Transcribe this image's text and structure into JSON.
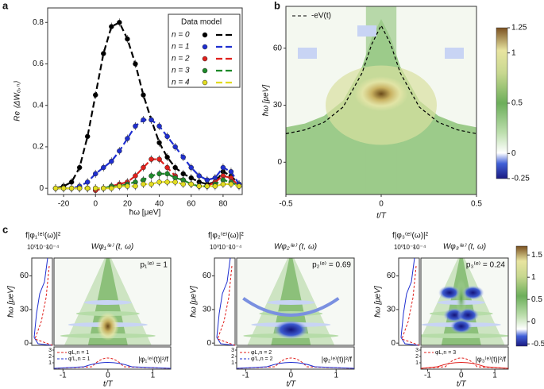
{
  "panel_labels": [
    "a",
    "b",
    "c"
  ],
  "chart_data": [
    {
      "type": "line",
      "y_label": "Re ⟨ΔW₀,ₙ⟩",
      "x_label": "ħω [μeV]",
      "legend_title": "Data model",
      "x": [
        -25,
        -20,
        -15,
        -10,
        -5,
        0,
        5,
        10,
        15,
        20,
        25,
        30,
        35,
        40,
        45,
        50,
        55,
        60,
        65,
        70,
        75,
        80,
        85,
        90
      ],
      "series": [
        {
          "name": "n = 0",
          "color": "#000000",
          "values": [
            0,
            0.01,
            0.03,
            0.1,
            0.25,
            0.45,
            0.65,
            0.78,
            0.8,
            0.72,
            0.6,
            0.45,
            0.33,
            0.22,
            0.15,
            0.1,
            0.07,
            0.05,
            0.03,
            0.02,
            0.03,
            0.08,
            0.06,
            0.02
          ]
        },
        {
          "name": "n = 1",
          "color": "#1f2fd0",
          "values": [
            0,
            0,
            0,
            0.01,
            0.03,
            0.07,
            0.1,
            0.13,
            0.18,
            0.24,
            0.3,
            0.33,
            0.33,
            0.3,
            0.25,
            0.2,
            0.15,
            0.1,
            0.06,
            0.04,
            0.05,
            0.1,
            0.08,
            0.02
          ]
        },
        {
          "name": "n = 2",
          "color": "#e0201c",
          "values": [
            0,
            0,
            0,
            0,
            0,
            -0.01,
            0,
            0.01,
            0.02,
            0.03,
            0.06,
            0.1,
            0.14,
            0.14,
            0.1,
            0.06,
            0.04,
            0.02,
            0.01,
            0.01,
            0.03,
            0.06,
            0.05,
            0.01
          ]
        },
        {
          "name": "n = 3",
          "color": "#1e8a2a",
          "values": [
            0,
            0,
            0,
            0,
            0,
            0,
            0,
            0.01,
            0.01,
            0.02,
            0.03,
            0.04,
            0.06,
            0.07,
            0.07,
            0.05,
            0.04,
            0.02,
            0.01,
            0.01,
            0.02,
            0.04,
            0.03,
            0.01
          ]
        },
        {
          "name": "n = 4",
          "color": "#e2dc20",
          "values": [
            0,
            0,
            0,
            0,
            0,
            0,
            0,
            0,
            0.01,
            0.01,
            0.01,
            0.02,
            0.02,
            0.03,
            0.03,
            0.03,
            0.02,
            0.02,
            0.01,
            0.01,
            0.01,
            0.02,
            0.02,
            0.01
          ]
        }
      ],
      "xlim": [
        -30,
        92
      ],
      "ylim": [
        -0.03,
        0.87
      ],
      "xticks": [
        -20,
        0,
        20,
        40,
        60,
        80
      ],
      "yticks": [
        0,
        0.2,
        0.4,
        0.6,
        0.8
      ]
    },
    {
      "type": "heatmap",
      "x_label": "t/T",
      "y_label": "ħω [μeV]",
      "xlim": [
        -0.5,
        0.5
      ],
      "ylim": [
        -17,
        82
      ],
      "xticks": [
        -0.5,
        0,
        0.5
      ],
      "yticks": [
        0,
        30,
        60
      ],
      "clim": [
        -0.25,
        1.25
      ],
      "cticks": [
        -0.25,
        0,
        0.5,
        1,
        1.25
      ],
      "series": [
        {
          "name": "-eV(t)",
          "color": "#000000",
          "x": [
            -0.5,
            -0.4,
            -0.3,
            -0.2,
            -0.1,
            -0.05,
            0,
            0.05,
            0.1,
            0.2,
            0.3,
            0.4,
            0.5
          ],
          "values": [
            15,
            17,
            21,
            29,
            47,
            62,
            72,
            62,
            47,
            29,
            21,
            17,
            15
          ]
        }
      ]
    },
    {
      "type": "wigner",
      "title": "Wφ₁⁽ᵉ⁾ (t, ω)",
      "annotation": "p₁⁽ᵉ⁾ = 1",
      "spectrum_label": "f|φ₁⁽ᵉ⁾(ω)|²",
      "spectrum_lim": [
        1,
        0.0001
      ],
      "spectrum_ticks": [
        {
          "value": 1,
          "label": "10⁰"
        },
        {
          "value": 0.01,
          "label": "10⁻²"
        },
        {
          "value": 0.0001,
          "label": "10⁻⁴"
        }
      ],
      "y_label": "ħω [μeV]",
      "ylim": [
        -2,
        76
      ],
      "yticks": [
        0,
        30,
        60
      ],
      "x_label": "t/T",
      "xlim": [
        -1.2,
        1.4
      ],
      "xticks": [
        -1,
        0,
        1
      ],
      "strip_ylim": [
        0,
        3.5
      ],
      "strip_yticks": [
        1,
        2,
        3
      ],
      "strip_label": "|φ₁⁽ᵉ⁾(t)|²/f",
      "series": [
        {
          "name": "φL,n = 1",
          "color": "#e0201c"
        },
        {
          "name": "φ'L,n = 1",
          "color": "#1f2fd0"
        }
      ]
    },
    {
      "type": "wigner",
      "title": "Wφ₂⁽ᵉ⁾ (t, ω)",
      "annotation": "p₂⁽ᵉ⁾ = 0.69",
      "spectrum_label": "f|φ₂⁽ᵉ⁾(ω)|²",
      "spectrum_lim": [
        1,
        0.0001
      ],
      "spectrum_ticks": [
        {
          "value": 1,
          "label": "10⁰"
        },
        {
          "value": 0.01,
          "label": "10⁻²"
        },
        {
          "value": 0.0001,
          "label": "10⁻⁴"
        }
      ],
      "y_label": "ħω [μeV]",
      "ylim": [
        -2,
        76
      ],
      "yticks": [
        0,
        30,
        60
      ],
      "x_label": "t/T",
      "xlim": [
        -1.2,
        1.4
      ],
      "xticks": [
        -1,
        0,
        1
      ],
      "strip_ylim": [
        0,
        3.5
      ],
      "strip_yticks": [
        1,
        2,
        3
      ],
      "strip_label": "|φ₂⁽ᵉ⁾(t)|²/f",
      "series": [
        {
          "name": "φL,n = 2",
          "color": "#e0201c"
        },
        {
          "name": "φ'L,n = 2",
          "color": "#1f2fd0"
        }
      ]
    },
    {
      "type": "wigner",
      "title": "Wφ₃⁽ᵉ⁾ (t, ω)",
      "annotation": "p₃⁽ᵉ⁾ = 0.24",
      "spectrum_label": "f|φ₃⁽ᵉ⁾(ω)|²",
      "spectrum_lim": [
        1,
        0.0001
      ],
      "spectrum_ticks": [
        {
          "value": 1,
          "label": "10⁰"
        },
        {
          "value": 0.01,
          "label": "10⁻²"
        },
        {
          "value": 0.0001,
          "label": "10⁻⁴"
        }
      ],
      "y_label": "ħω [μeV]",
      "ylim": [
        -2,
        76
      ],
      "yticks": [
        0,
        30,
        60
      ],
      "x_label": "t/T",
      "xlim": [
        -1.2,
        1.4
      ],
      "xticks": [
        -1,
        0,
        1
      ],
      "strip_ylim": [
        0,
        3.5
      ],
      "strip_yticks": [
        1,
        2,
        3
      ],
      "strip_label": "|φ₃⁽ᵉ⁾(t)|²/f",
      "series": [
        {
          "name": "φL,n = 3",
          "color": "#e0201c"
        }
      ],
      "clim": [
        -0.55,
        1.7
      ],
      "cticks": [
        -0.5,
        0,
        0.5,
        1,
        1.5
      ]
    }
  ]
}
